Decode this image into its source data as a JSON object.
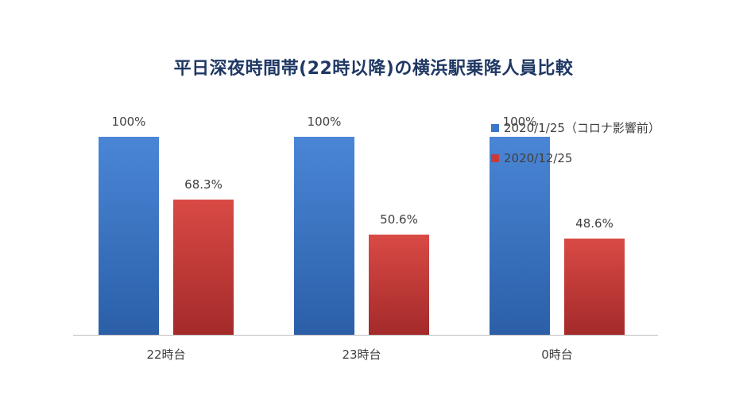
{
  "chart_data": {
    "type": "bar",
    "title": "平日深夜時間帯(22時以降)の横浜駅乗降人員比較",
    "categories": [
      "22時台",
      "23時台",
      "0時台"
    ],
    "series": [
      {
        "name": "2020/1/25（コロナ影響前）",
        "values": [
          100,
          100,
          100
        ],
        "labels": [
          "100%",
          "100%",
          "100%"
        ],
        "color": "#3a78c9"
      },
      {
        "name": "2020/12/25",
        "values": [
          68.3,
          50.6,
          48.6
        ],
        "labels": [
          "68.3%",
          "50.6%",
          "48.6%"
        ],
        "color": "#c83a3a"
      }
    ],
    "ylim": [
      0,
      100
    ],
    "grid": false,
    "legend_position": "right"
  }
}
